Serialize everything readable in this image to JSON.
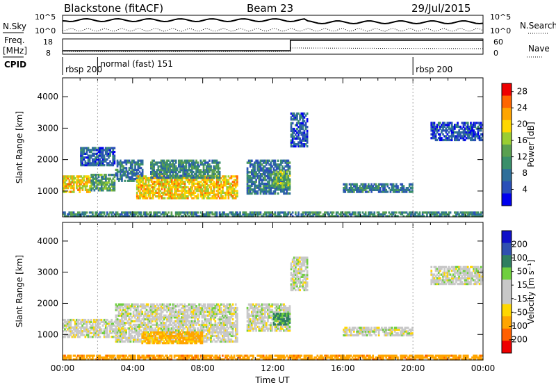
{
  "header": {
    "station": "Blackstone (fitACF)",
    "beam": "Beam 23",
    "date": "29/Jul/2015"
  },
  "left_labels": {
    "nsky": "N.Sky",
    "freq_line1": "Freq.",
    "freq_line2": "[MHz]",
    "cpid": "CPID"
  },
  "right_labels": {
    "nsearch": "N.Search",
    "nave": "Nave"
  },
  "noise_ticks": {
    "left": [
      "10^5",
      "10^0"
    ],
    "right": [
      "10^5",
      "10^0"
    ]
  },
  "freq_ticks": {
    "left": [
      "18",
      "8"
    ],
    "right": [
      "60",
      "0"
    ]
  },
  "cpid_segments": [
    {
      "label": "rbsp 200",
      "start_h": 0
    },
    {
      "label": "normal (fast) 151",
      "start_h": 2
    },
    {
      "label": "rbsp 200",
      "start_h": 20
    }
  ],
  "x_ticks": [
    "00:00",
    "04:00",
    "08:00",
    "12:00",
    "16:00",
    "20:00",
    "00:00"
  ],
  "xlabel": "Time UT",
  "colors": {
    "power": [
      "#0000ee",
      "#2a4fb8",
      "#2f6f9a",
      "#3a8f6a",
      "#5aa050",
      "#9acd32",
      "#ffd700",
      "#ffa500",
      "#ff6600",
      "#ee0000"
    ],
    "velocity": [
      "#1010c8",
      "#3050b0",
      "#2f7f60",
      "#6fcf3f",
      "#c8c8c8",
      "#c8c8c8",
      "#ffd700",
      "#ffa500",
      "#ff6000",
      "#ee0000"
    ]
  },
  "chart_data": [
    {
      "type": "heatmap",
      "title": "",
      "ylabel": "Slant Range [km]",
      "xlabel": "",
      "xlim_hours": [
        0,
        24
      ],
      "ylim": [
        180,
        4600
      ],
      "yticks": [
        1000,
        2000,
        3000,
        4000
      ],
      "colorbar": {
        "label": "Power [dB]",
        "ticks": [
          4,
          8,
          12,
          16,
          20,
          24,
          28
        ],
        "range": [
          0,
          30
        ]
      },
      "regions": [
        {
          "t0": 0.0,
          "t1": 1.6,
          "r0": 950,
          "r1": 1500,
          "level": 20
        },
        {
          "t0": 1.6,
          "t1": 3.0,
          "r0": 1000,
          "r1": 1550,
          "level": 12
        },
        {
          "t0": 3.0,
          "t1": 4.6,
          "r0": 1300,
          "r1": 2000,
          "level": 8
        },
        {
          "t0": 4.2,
          "t1": 10.0,
          "r0": 750,
          "r1": 1500,
          "level": 20
        },
        {
          "t0": 5.0,
          "t1": 9.0,
          "r0": 1400,
          "r1": 2000,
          "level": 10
        },
        {
          "t0": 10.5,
          "t1": 13.0,
          "r0": 900,
          "r1": 2000,
          "level": 8
        },
        {
          "t0": 12.0,
          "t1": 13.0,
          "r0": 1100,
          "r1": 1650,
          "level": 14
        },
        {
          "t0": 13.0,
          "t1": 14.0,
          "r0": 2400,
          "r1": 3500,
          "level": 6
        },
        {
          "t0": 16.0,
          "t1": 20.0,
          "r0": 950,
          "r1": 1250,
          "level": 8
        },
        {
          "t0": 21.0,
          "t1": 24.0,
          "r0": 2600,
          "r1": 3200,
          "level": 5
        },
        {
          "t0": 1.0,
          "t1": 3.0,
          "r0": 1800,
          "r1": 2400,
          "level": 6
        },
        {
          "t0": 0.0,
          "t1": 24.0,
          "r0": 180,
          "r1": 350,
          "level": 10
        }
      ]
    },
    {
      "type": "heatmap",
      "title": "",
      "ylabel": "Slant Range [km]",
      "xlabel": "Time UT",
      "xlim_hours": [
        0,
        24
      ],
      "ylim": [
        180,
        4600
      ],
      "yticks": [
        1000,
        2000,
        3000,
        4000
      ],
      "colorbar": {
        "label": "Velocity [m s^-1]",
        "ticks": [
          200,
          100,
          50,
          15,
          -15,
          -50,
          -100,
          -200
        ]
      },
      "regions": [
        {
          "t0": 0.0,
          "t1": 3.5,
          "r0": 900,
          "r1": 1500,
          "vel": 0
        },
        {
          "t0": 3.0,
          "t1": 10.0,
          "r0": 750,
          "r1": 2000,
          "vel": 0
        },
        {
          "t0": 4.5,
          "t1": 8.0,
          "r0": 700,
          "r1": 1100,
          "vel": -40
        },
        {
          "t0": 10.5,
          "t1": 13.0,
          "r0": 1100,
          "r1": 2000,
          "vel": 0
        },
        {
          "t0": 12.0,
          "t1": 13.0,
          "r0": 1300,
          "r1": 1700,
          "vel": 40
        },
        {
          "t0": 13.0,
          "t1": 14.0,
          "r0": 2400,
          "r1": 3500,
          "vel": 0
        },
        {
          "t0": 16.0,
          "t1": 20.0,
          "r0": 950,
          "r1": 1250,
          "vel": 0
        },
        {
          "t0": 21.0,
          "t1": 24.0,
          "r0": 2600,
          "r1": 3200,
          "vel": 0
        },
        {
          "t0": 0.0,
          "t1": 24.0,
          "r0": 180,
          "r1": 350,
          "vel": -60
        }
      ]
    }
  ]
}
